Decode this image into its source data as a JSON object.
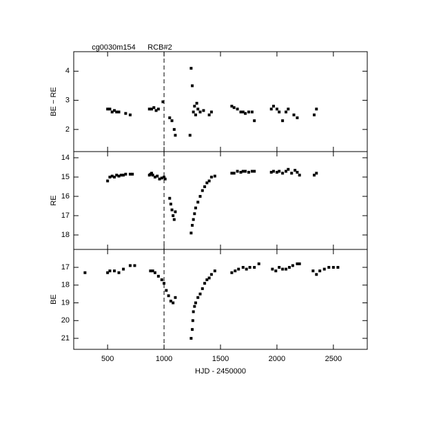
{
  "chart_data": [
    {
      "type": "scatter",
      "ylabel": "BE − RE",
      "annotations": [
        "cg0030m154",
        "RCB#2"
      ],
      "vline": 1000,
      "color": "#000000",
      "xlim": [
        200,
        2800
      ],
      "ylim": [
        1.24,
        4.67
      ],
      "yticks": [
        2,
        3,
        4
      ],
      "y_inverted": false,
      "x": [
        500,
        520,
        540,
        560,
        580,
        600,
        660,
        700,
        870,
        890,
        910,
        930,
        950,
        990,
        1050,
        1070,
        1090,
        1100,
        1230,
        1240,
        1250,
        1260,
        1270,
        1280,
        1290,
        1300,
        1320,
        1350,
        1400,
        1420,
        1600,
        1620,
        1650,
        1680,
        1700,
        1720,
        1750,
        1780,
        1800,
        1950,
        1970,
        2000,
        2020,
        2050,
        2080,
        2100,
        2150,
        2180,
        2330,
        2350
      ],
      "values": [
        2.7,
        2.7,
        2.6,
        2.65,
        2.6,
        2.6,
        2.55,
        2.5,
        2.7,
        2.7,
        2.75,
        2.65,
        2.7,
        2.95,
        2.4,
        2.3,
        2.0,
        1.8,
        1.8,
        4.1,
        3.5,
        2.6,
        2.8,
        2.5,
        2.9,
        2.7,
        2.6,
        2.65,
        2.5,
        2.6,
        2.8,
        2.75,
        2.7,
        2.6,
        2.6,
        2.55,
        2.6,
        2.6,
        2.3,
        2.7,
        2.8,
        2.7,
        2.6,
        2.3,
        2.6,
        2.7,
        2.5,
        2.4,
        2.5,
        2.7
      ]
    },
    {
      "type": "scatter",
      "ylabel": "RE",
      "vline": 1000,
      "color": "#000000",
      "xlim": [
        200,
        2800
      ],
      "ylim": [
        13.68,
        18.75
      ],
      "yticks": [
        14,
        15,
        16,
        17,
        18
      ],
      "y_inverted": true,
      "x": [
        500,
        520,
        540,
        560,
        580,
        600,
        620,
        640,
        660,
        700,
        720,
        870,
        880,
        890,
        900,
        920,
        940,
        960,
        980,
        1000,
        1010,
        1050,
        1060,
        1070,
        1080,
        1090,
        1100,
        1240,
        1250,
        1260,
        1270,
        1280,
        1300,
        1320,
        1340,
        1360,
        1380,
        1400,
        1420,
        1450,
        1600,
        1620,
        1650,
        1680,
        1700,
        1720,
        1750,
        1780,
        1800,
        1950,
        1970,
        2000,
        2020,
        2050,
        2080,
        2100,
        2130,
        2160,
        2180,
        2200,
        2330,
        2350
      ],
      "values": [
        15.2,
        15.0,
        14.95,
        15.0,
        14.9,
        14.95,
        14.9,
        14.9,
        14.85,
        14.85,
        14.85,
        14.9,
        14.85,
        14.8,
        14.9,
        15.0,
        14.95,
        15.1,
        15.05,
        15.0,
        15.1,
        16.1,
        16.4,
        16.7,
        17.0,
        17.2,
        16.8,
        17.9,
        17.5,
        17.2,
        16.9,
        16.6,
        16.3,
        16.0,
        15.7,
        15.5,
        15.3,
        15.2,
        15.0,
        14.95,
        14.8,
        14.8,
        14.7,
        14.75,
        14.7,
        14.7,
        14.75,
        14.7,
        14.7,
        14.75,
        14.7,
        14.75,
        14.7,
        14.8,
        14.7,
        14.6,
        14.8,
        14.65,
        14.75,
        14.9,
        14.9,
        14.8
      ]
    },
    {
      "type": "scatter",
      "ylabel": "BE",
      "xlabel": "HJD - 2450000",
      "vline": 1000,
      "color": "#000000",
      "xlim": [
        200,
        2800
      ],
      "xticks": [
        500,
        1000,
        1500,
        2000,
        2500
      ],
      "ylim": [
        15.99,
        21.62
      ],
      "yticks": [
        17,
        18,
        19,
        20,
        21
      ],
      "y_inverted": true,
      "x": [
        300,
        500,
        520,
        560,
        600,
        640,
        700,
        740,
        880,
        900,
        920,
        950,
        980,
        1000,
        1020,
        1040,
        1060,
        1080,
        1100,
        1240,
        1250,
        1255,
        1260,
        1270,
        1280,
        1300,
        1320,
        1340,
        1360,
        1380,
        1400,
        1420,
        1450,
        1600,
        1630,
        1660,
        1700,
        1730,
        1760,
        1800,
        1840,
        1960,
        1990,
        2020,
        2050,
        2080,
        2110,
        2140,
        2180,
        2200,
        2320,
        2350,
        2380,
        2420,
        2460,
        2500,
        2540
      ],
      "values": [
        17.3,
        17.3,
        17.2,
        17.2,
        17.3,
        17.1,
        16.9,
        16.9,
        17.2,
        17.2,
        17.3,
        17.5,
        17.7,
        17.9,
        18.3,
        18.6,
        18.9,
        19.0,
        18.7,
        21.0,
        20.5,
        20.0,
        19.5,
        19.2,
        19.0,
        18.7,
        18.5,
        18.2,
        17.9,
        17.7,
        17.6,
        17.4,
        17.2,
        17.3,
        17.2,
        17.1,
        17.0,
        17.1,
        17.0,
        17.0,
        16.8,
        17.1,
        17.2,
        17.0,
        17.1,
        17.1,
        17.0,
        16.9,
        16.8,
        16.8,
        17.2,
        17.4,
        17.2,
        17.1,
        17.0,
        17.0,
        17.0
      ]
    }
  ]
}
